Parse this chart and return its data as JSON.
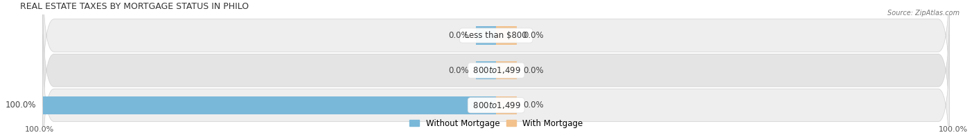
{
  "title": "Real Estate Taxes by Mortgage Status in Philo",
  "source": "Source: ZipAtlas.com",
  "rows": [
    {
      "label": "Less than $800",
      "without_mortgage": 0.0,
      "with_mortgage": 0.0
    },
    {
      "label": "$800 to $1,499",
      "without_mortgage": 0.0,
      "with_mortgage": 0.0
    },
    {
      "label": "$800 to $1,499",
      "without_mortgage": 100.0,
      "with_mortgage": 0.0
    }
  ],
  "color_without": "#7ab8d9",
  "color_with": "#f2c18c",
  "row_bg_color_odd": "#eeeeee",
  "row_bg_color_even": "#e4e4e4",
  "row_border_color": "#d0d0d0",
  "legend_labels": [
    "Without Mortgage",
    "With Mortgage"
  ],
  "x_left_label": "100.0%",
  "x_right_label": "100.0%",
  "title_fontsize": 9,
  "label_fontsize": 8.5,
  "tick_fontsize": 8,
  "stub_size": 4.5
}
